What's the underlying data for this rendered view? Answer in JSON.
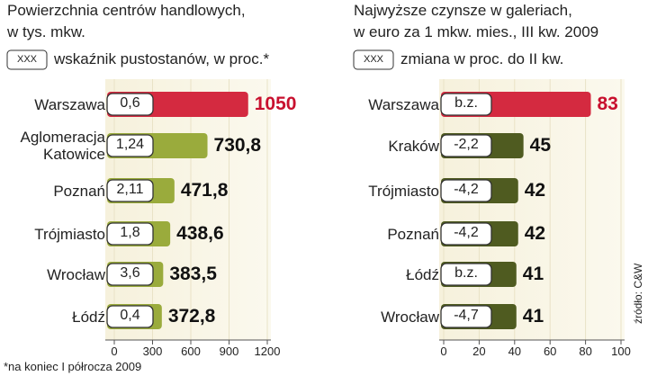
{
  "chart_data": [
    {
      "type": "bar",
      "orientation": "horizontal",
      "title": [
        "Powierzchnia centrów handlowych,",
        "w tys. mkw."
      ],
      "legend_box": "XXX",
      "legend_text": "wskaźnik pustostanów, w proc.*",
      "categories": [
        "Warszawa",
        "Aglomeracja Katowice",
        "Poznań",
        "Trójmiasto",
        "Wrocław",
        "Łódź"
      ],
      "values": [
        1050,
        730.8,
        471.8,
        438.6,
        383.5,
        372.8
      ],
      "value_labels": [
        "1050",
        "730,8",
        "471,8",
        "438,6",
        "383,5",
        "372,8"
      ],
      "colors": [
        "#d42a40",
        "#9aab3c",
        "#9aab3c",
        "#9aab3c",
        "#9aab3c",
        "#9aab3c"
      ],
      "label_colors": [
        "#c8102e",
        "#111111",
        "#111111",
        "#111111",
        "#111111",
        "#111111"
      ],
      "indicator": {
        "values": [
          0.6,
          1.24,
          2.11,
          1.8,
          3.6,
          0.4
        ],
        "value_labels": [
          "0,6",
          "1,24",
          "2,11",
          "1,8",
          "3,6",
          "0,4"
        ]
      },
      "xlim": [
        0,
        1200
      ],
      "xticks": [
        0,
        300,
        600,
        900,
        1200
      ],
      "footnote": "*na koniec I półrocza 2009"
    },
    {
      "type": "bar",
      "orientation": "horizontal",
      "title": [
        "Najwyższe czynsze w galeriach,",
        "w euro za 1 mkw. mies., III kw. 2009"
      ],
      "legend_box": "XXX",
      "legend_text": "zmiana w proc. do II kw.",
      "categories": [
        "Warszawa",
        "Kraków",
        "Trójmiasto",
        "Poznań",
        "Łódź",
        "Wrocław"
      ],
      "values": [
        83,
        45,
        42,
        42,
        41,
        41
      ],
      "colors": [
        "#d42a40",
        "#4f5b20",
        "#4f5b20",
        "#4f5b20",
        "#4f5b20",
        "#4f5b20"
      ],
      "label_colors": [
        "#c8102e",
        "#111111",
        "#111111",
        "#111111",
        "#111111",
        "#111111"
      ],
      "indicator": {
        "values": [
          0,
          -2.2,
          -4.2,
          -4.2,
          0,
          -4.7
        ],
        "value_labels": [
          "b.z.",
          "-2,2",
          "-4,2",
          "-4,2",
          "b.z.",
          "-4,7"
        ]
      },
      "xlim": [
        0,
        100
      ],
      "xticks": [
        0,
        20,
        40,
        60,
        80,
        100
      ]
    }
  ],
  "source": "źródło: C&W"
}
